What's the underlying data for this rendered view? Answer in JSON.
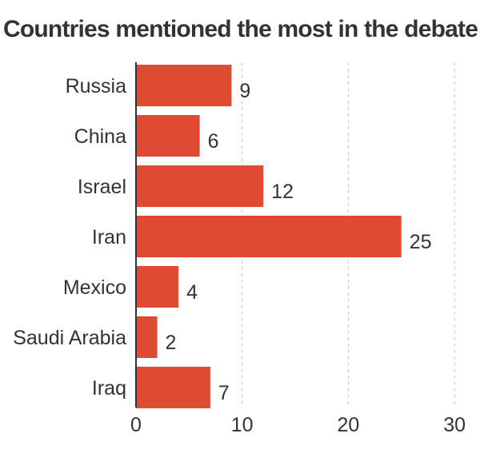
{
  "chart_data": {
    "type": "bar",
    "orientation": "horizontal",
    "title": "Countries mentioned the most in the debate",
    "categories": [
      "Russia",
      "China",
      "Israel",
      "Iran",
      "Mexico",
      "Saudi Arabia",
      "Iraq"
    ],
    "values": [
      9,
      6,
      12,
      25,
      4,
      2,
      7
    ],
    "xlim": [
      0,
      30
    ],
    "xticks": [
      0,
      10,
      20,
      30
    ],
    "xlabel": "",
    "ylabel": "",
    "grid": "vertical-dashed",
    "bar_color": "#e04a33"
  }
}
